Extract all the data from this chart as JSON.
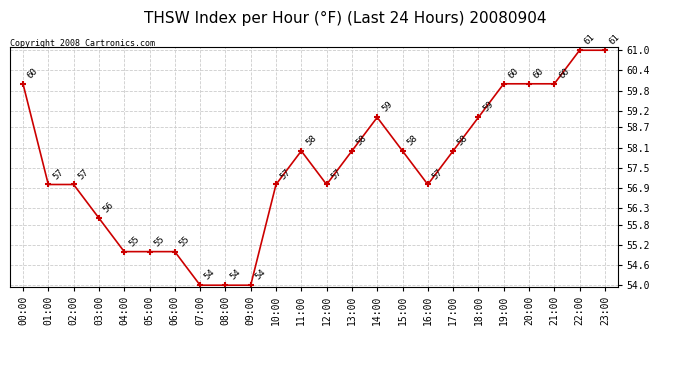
{
  "title": "THSW Index per Hour (°F) (Last 24 Hours) 20080904",
  "copyright": "Copyright 2008 Cartronics.com",
  "hours": [
    0,
    1,
    2,
    3,
    4,
    5,
    6,
    7,
    8,
    9,
    10,
    11,
    12,
    13,
    14,
    15,
    16,
    17,
    18,
    19,
    20,
    21,
    22,
    23
  ],
  "values": [
    60,
    57,
    57,
    56,
    55,
    55,
    55,
    54,
    54,
    54,
    57,
    58,
    57,
    58,
    59,
    58,
    57,
    58,
    59,
    60,
    60,
    60,
    61,
    61
  ],
  "xlabels": [
    "00:00",
    "01:00",
    "02:00",
    "03:00",
    "04:00",
    "05:00",
    "06:00",
    "07:00",
    "08:00",
    "09:00",
    "10:00",
    "11:00",
    "12:00",
    "13:00",
    "14:00",
    "15:00",
    "16:00",
    "17:00",
    "18:00",
    "19:00",
    "20:00",
    "21:00",
    "22:00",
    "23:00"
  ],
  "line_color": "#cc0000",
  "marker_color": "#cc0000",
  "bg_color": "#ffffff",
  "grid_color": "#cccccc",
  "title_fontsize": 11,
  "label_fontsize": 7,
  "annotation_fontsize": 6.5,
  "ymin": 54.0,
  "ymax": 61.0,
  "yticks": [
    54.0,
    54.6,
    55.2,
    55.8,
    56.3,
    56.9,
    57.5,
    58.1,
    58.7,
    59.2,
    59.8,
    60.4,
    61.0
  ]
}
